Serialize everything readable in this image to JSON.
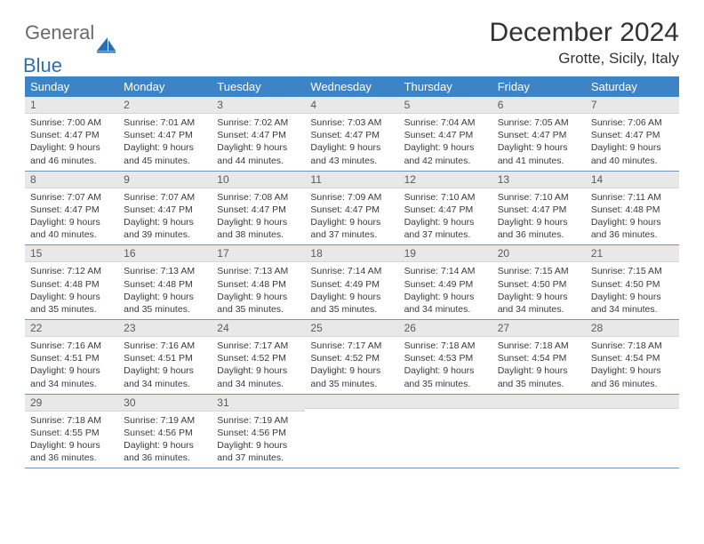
{
  "brand": {
    "word1": "General",
    "word2": "Blue",
    "text_color": "#6a6a6a",
    "accent_color": "#2f6fb0",
    "icon_fill": "#2b6fb3"
  },
  "header": {
    "title": "December 2024",
    "location": "Grotte, Sicily, Italy"
  },
  "colors": {
    "header_row_bg": "#3d84c6",
    "header_row_text": "#ffffff",
    "daynum_bg": "#e8e8e8",
    "daynum_text": "#5a5a5a",
    "row_divider": "#6d96bd",
    "body_text": "#333333"
  },
  "weekdays": [
    "Sunday",
    "Monday",
    "Tuesday",
    "Wednesday",
    "Thursday",
    "Friday",
    "Saturday"
  ],
  "days": [
    {
      "n": "1",
      "sunrise": "Sunrise: 7:00 AM",
      "sunset": "Sunset: 4:47 PM",
      "daylight": "Daylight: 9 hours and 46 minutes."
    },
    {
      "n": "2",
      "sunrise": "Sunrise: 7:01 AM",
      "sunset": "Sunset: 4:47 PM",
      "daylight": "Daylight: 9 hours and 45 minutes."
    },
    {
      "n": "3",
      "sunrise": "Sunrise: 7:02 AM",
      "sunset": "Sunset: 4:47 PM",
      "daylight": "Daylight: 9 hours and 44 minutes."
    },
    {
      "n": "4",
      "sunrise": "Sunrise: 7:03 AM",
      "sunset": "Sunset: 4:47 PM",
      "daylight": "Daylight: 9 hours and 43 minutes."
    },
    {
      "n": "5",
      "sunrise": "Sunrise: 7:04 AM",
      "sunset": "Sunset: 4:47 PM",
      "daylight": "Daylight: 9 hours and 42 minutes."
    },
    {
      "n": "6",
      "sunrise": "Sunrise: 7:05 AM",
      "sunset": "Sunset: 4:47 PM",
      "daylight": "Daylight: 9 hours and 41 minutes."
    },
    {
      "n": "7",
      "sunrise": "Sunrise: 7:06 AM",
      "sunset": "Sunset: 4:47 PM",
      "daylight": "Daylight: 9 hours and 40 minutes."
    },
    {
      "n": "8",
      "sunrise": "Sunrise: 7:07 AM",
      "sunset": "Sunset: 4:47 PM",
      "daylight": "Daylight: 9 hours and 40 minutes."
    },
    {
      "n": "9",
      "sunrise": "Sunrise: 7:07 AM",
      "sunset": "Sunset: 4:47 PM",
      "daylight": "Daylight: 9 hours and 39 minutes."
    },
    {
      "n": "10",
      "sunrise": "Sunrise: 7:08 AM",
      "sunset": "Sunset: 4:47 PM",
      "daylight": "Daylight: 9 hours and 38 minutes."
    },
    {
      "n": "11",
      "sunrise": "Sunrise: 7:09 AM",
      "sunset": "Sunset: 4:47 PM",
      "daylight": "Daylight: 9 hours and 37 minutes."
    },
    {
      "n": "12",
      "sunrise": "Sunrise: 7:10 AM",
      "sunset": "Sunset: 4:47 PM",
      "daylight": "Daylight: 9 hours and 37 minutes."
    },
    {
      "n": "13",
      "sunrise": "Sunrise: 7:10 AM",
      "sunset": "Sunset: 4:47 PM",
      "daylight": "Daylight: 9 hours and 36 minutes."
    },
    {
      "n": "14",
      "sunrise": "Sunrise: 7:11 AM",
      "sunset": "Sunset: 4:48 PM",
      "daylight": "Daylight: 9 hours and 36 minutes."
    },
    {
      "n": "15",
      "sunrise": "Sunrise: 7:12 AM",
      "sunset": "Sunset: 4:48 PM",
      "daylight": "Daylight: 9 hours and 35 minutes."
    },
    {
      "n": "16",
      "sunrise": "Sunrise: 7:13 AM",
      "sunset": "Sunset: 4:48 PM",
      "daylight": "Daylight: 9 hours and 35 minutes."
    },
    {
      "n": "17",
      "sunrise": "Sunrise: 7:13 AM",
      "sunset": "Sunset: 4:48 PM",
      "daylight": "Daylight: 9 hours and 35 minutes."
    },
    {
      "n": "18",
      "sunrise": "Sunrise: 7:14 AM",
      "sunset": "Sunset: 4:49 PM",
      "daylight": "Daylight: 9 hours and 35 minutes."
    },
    {
      "n": "19",
      "sunrise": "Sunrise: 7:14 AM",
      "sunset": "Sunset: 4:49 PM",
      "daylight": "Daylight: 9 hours and 34 minutes."
    },
    {
      "n": "20",
      "sunrise": "Sunrise: 7:15 AM",
      "sunset": "Sunset: 4:50 PM",
      "daylight": "Daylight: 9 hours and 34 minutes."
    },
    {
      "n": "21",
      "sunrise": "Sunrise: 7:15 AM",
      "sunset": "Sunset: 4:50 PM",
      "daylight": "Daylight: 9 hours and 34 minutes."
    },
    {
      "n": "22",
      "sunrise": "Sunrise: 7:16 AM",
      "sunset": "Sunset: 4:51 PM",
      "daylight": "Daylight: 9 hours and 34 minutes."
    },
    {
      "n": "23",
      "sunrise": "Sunrise: 7:16 AM",
      "sunset": "Sunset: 4:51 PM",
      "daylight": "Daylight: 9 hours and 34 minutes."
    },
    {
      "n": "24",
      "sunrise": "Sunrise: 7:17 AM",
      "sunset": "Sunset: 4:52 PM",
      "daylight": "Daylight: 9 hours and 34 minutes."
    },
    {
      "n": "25",
      "sunrise": "Sunrise: 7:17 AM",
      "sunset": "Sunset: 4:52 PM",
      "daylight": "Daylight: 9 hours and 35 minutes."
    },
    {
      "n": "26",
      "sunrise": "Sunrise: 7:18 AM",
      "sunset": "Sunset: 4:53 PM",
      "daylight": "Daylight: 9 hours and 35 minutes."
    },
    {
      "n": "27",
      "sunrise": "Sunrise: 7:18 AM",
      "sunset": "Sunset: 4:54 PM",
      "daylight": "Daylight: 9 hours and 35 minutes."
    },
    {
      "n": "28",
      "sunrise": "Sunrise: 7:18 AM",
      "sunset": "Sunset: 4:54 PM",
      "daylight": "Daylight: 9 hours and 36 minutes."
    },
    {
      "n": "29",
      "sunrise": "Sunrise: 7:18 AM",
      "sunset": "Sunset: 4:55 PM",
      "daylight": "Daylight: 9 hours and 36 minutes."
    },
    {
      "n": "30",
      "sunrise": "Sunrise: 7:19 AM",
      "sunset": "Sunset: 4:56 PM",
      "daylight": "Daylight: 9 hours and 36 minutes."
    },
    {
      "n": "31",
      "sunrise": "Sunrise: 7:19 AM",
      "sunset": "Sunset: 4:56 PM",
      "daylight": "Daylight: 9 hours and 37 minutes."
    }
  ]
}
